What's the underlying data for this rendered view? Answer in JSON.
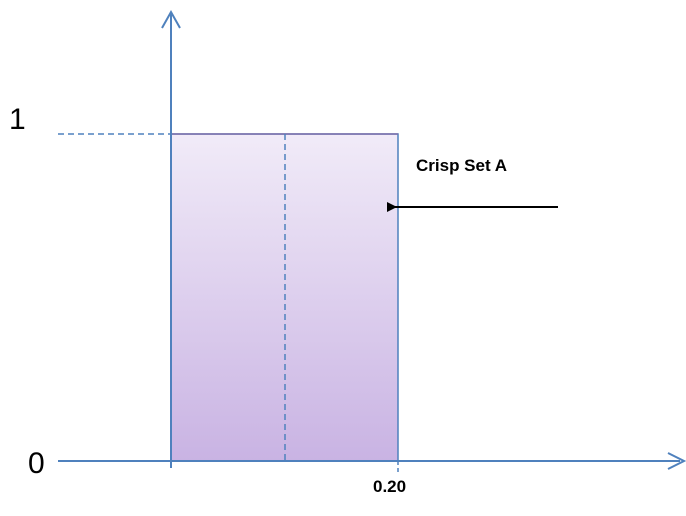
{
  "diagram": {
    "y_tick_top": "1",
    "y_tick_bottom": "0",
    "x_tick": "0.20",
    "annotation": "Crisp Set A"
  },
  "colors": {
    "axis": "#4F81BD",
    "rect_fill_top": "#F1EBF8",
    "rect_fill_bottom": "#C9B3E3",
    "rect_stroke": "#4F81BD",
    "rect_top_edge": "#7F6FAA",
    "arrow": "#000000"
  }
}
